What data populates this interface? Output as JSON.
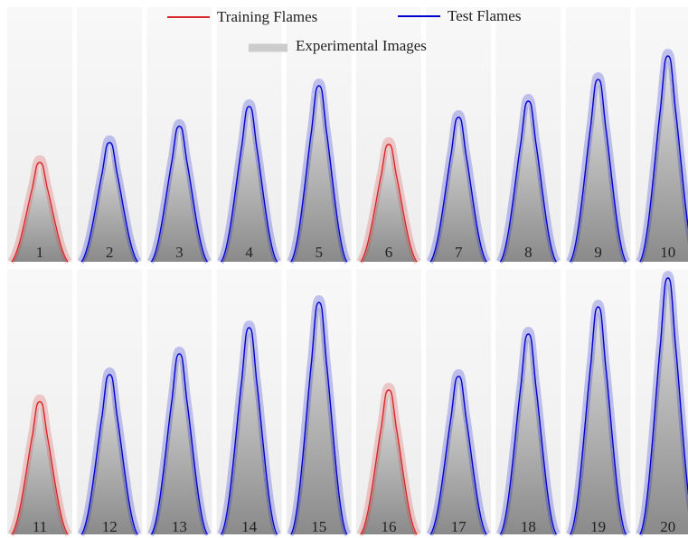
{
  "legend": [
    {
      "label": "Training Flames",
      "color": "#d62728"
    },
    {
      "label": "Test Flames",
      "color": "#0000cc"
    },
    {
      "label": "Experimental Images",
      "color": "#cccccc"
    }
  ],
  "panels": [
    {
      "label": "1",
      "color": "#d62728"
    },
    {
      "label": "2",
      "color": "#0000cc"
    },
    {
      "label": "3",
      "color": "#0000cc"
    },
    {
      "label": "4",
      "color": "#0000cc"
    },
    {
      "label": "5",
      "color": "#0000cc"
    },
    {
      "label": "6",
      "color": "#d62728"
    },
    {
      "label": "7",
      "color": "#0000cc"
    },
    {
      "label": "8",
      "color": "#0000cc"
    },
    {
      "label": "9",
      "color": "#0000cc"
    },
    {
      "label": "10",
      "color": "#0000cc"
    },
    {
      "label": "11",
      "color": "#d62728"
    },
    {
      "label": "12",
      "color": "#0000cc"
    },
    {
      "label": "13",
      "color": "#0000cc"
    },
    {
      "label": "14",
      "color": "#0000cc"
    },
    {
      "label": "15",
      "color": "#0000cc"
    },
    {
      "label": "16",
      "color": "#d62728"
    },
    {
      "label": "17",
      "color": "#0000cc"
    },
    {
      "label": "18",
      "color": "#0000cc"
    },
    {
      "label": "19",
      "color": "#0000cc"
    },
    {
      "label": "20",
      "color": "#0000cc"
    }
  ]
}
